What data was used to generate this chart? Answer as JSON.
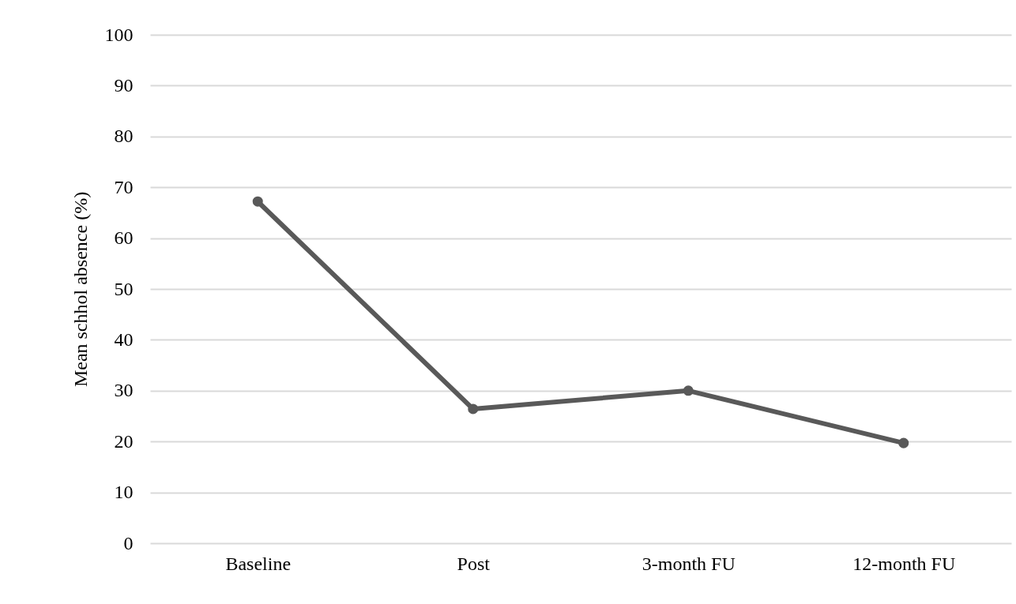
{
  "chart_data": {
    "type": "line",
    "ylabel": "Mean schhol absence (%)",
    "categories": [
      "Baseline",
      "Post",
      "3-month FU",
      "12-month FU"
    ],
    "series": [
      {
        "color": "#595959",
        "values": [
          67.2,
          26.4,
          30.0,
          19.7
        ]
      }
    ],
    "ylim": [
      0,
      100
    ],
    "yticks": [
      0,
      10,
      20,
      30,
      40,
      50,
      60,
      70,
      80,
      90,
      100
    ],
    "grid": "y",
    "marker": "circle",
    "line_style": "solid"
  }
}
